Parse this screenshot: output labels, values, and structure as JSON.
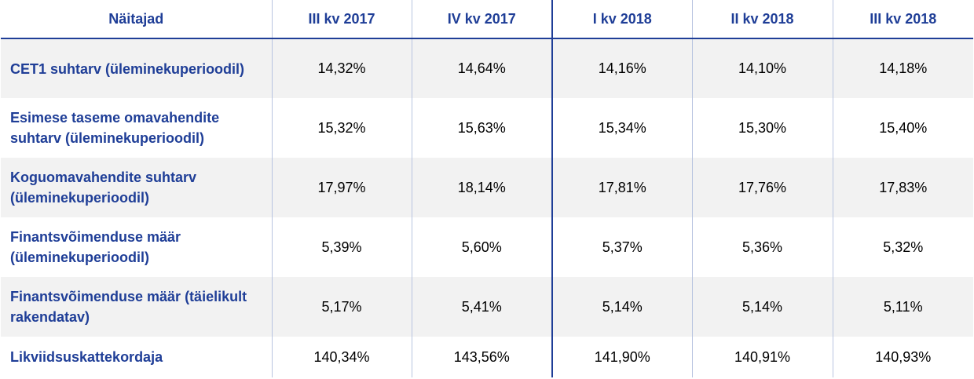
{
  "header": {
    "indicator": "Näitajad",
    "periods": [
      "III kv 2017",
      "IV kv 2017",
      "I kv 2018",
      "II kv 2018",
      "III kv 2018"
    ]
  },
  "rows": [
    {
      "label": "CET1 suhtarv (üleminekuperioodil)",
      "values": [
        "14,32%",
        "14,64%",
        "14,16%",
        "14,10%",
        "14,18%"
      ]
    },
    {
      "label": "Esimese taseme omavahendite suhtarv (üleminekuperioodil)",
      "values": [
        "15,32%",
        "15,63%",
        "15,34%",
        "15,30%",
        "15,40%"
      ]
    },
    {
      "label": "Koguomavahendite suhtarv (üleminekuperioodil)",
      "values": [
        "17,97%",
        "18,14%",
        "17,81%",
        "17,76%",
        "17,83%"
      ]
    },
    {
      "label": "Finantsvõimenduse määr (üleminekuperioodil)",
      "values": [
        "5,39%",
        "5,60%",
        "5,37%",
        "5,36%",
        "5,32%"
      ]
    },
    {
      "label": "Finantsvõimenduse määr (täielikult rakendatav)",
      "values": [
        "5,17%",
        "5,41%",
        "5,14%",
        "5,14%",
        "5,11%"
      ]
    },
    {
      "label": "Likviidsuskattekordaja",
      "values": [
        "140,34%",
        "143,56%",
        "141,90%",
        "140,91%",
        "140,93%"
      ]
    }
  ],
  "colors": {
    "header_text": "#1f3e97",
    "row_shade": "#f2f2f2",
    "divider": "#1f3e97"
  }
}
